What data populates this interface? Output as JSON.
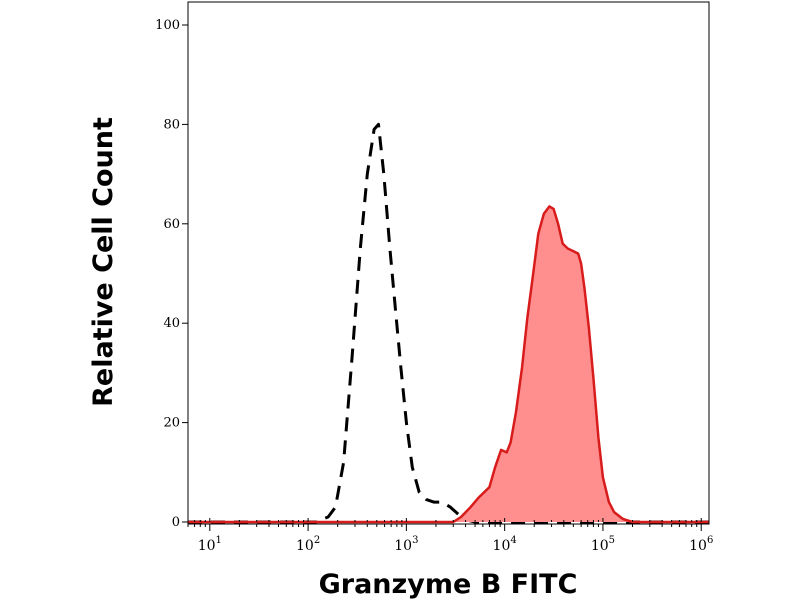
{
  "chart_data": {
    "type": "area",
    "title": "",
    "xlabel": "Granzyme B FITC",
    "ylabel": "Relative Cell Count",
    "xscale": "log",
    "xlim": [
      6,
      1200000
    ],
    "ylim": [
      0,
      100
    ],
    "grid": false,
    "legend": "none",
    "x_ticks": [
      {
        "base": "10",
        "exp": "1",
        "value": 10
      },
      {
        "base": "10",
        "exp": "2",
        "value": 100
      },
      {
        "base": "10",
        "exp": "3",
        "value": 1000
      },
      {
        "base": "10",
        "exp": "4",
        "value": 10000
      },
      {
        "base": "10",
        "exp": "5",
        "value": 100000
      },
      {
        "base": "10",
        "exp": "6",
        "value": 1000000
      }
    ],
    "y_ticks": [
      "0",
      "20",
      "40",
      "60",
      "80",
      "100"
    ],
    "series": [
      {
        "style": "dashed-outline",
        "color": "#000000",
        "points": [
          [
            6,
            0
          ],
          [
            50,
            0
          ],
          [
            120,
            0
          ],
          [
            160,
            1
          ],
          [
            190,
            3
          ],
          [
            230,
            12
          ],
          [
            280,
            33
          ],
          [
            340,
            55
          ],
          [
            400,
            70
          ],
          [
            470,
            79
          ],
          [
            520,
            80
          ],
          [
            590,
            70
          ],
          [
            680,
            55
          ],
          [
            780,
            42
          ],
          [
            880,
            31
          ],
          [
            1000,
            20
          ],
          [
            1150,
            11
          ],
          [
            1350,
            6
          ],
          [
            1600,
            4.5
          ],
          [
            1900,
            4
          ],
          [
            2300,
            4
          ],
          [
            2800,
            3
          ],
          [
            3400,
            1.5
          ],
          [
            4000,
            0.5
          ],
          [
            5000,
            0
          ],
          [
            20000,
            0
          ],
          [
            100000,
            0
          ],
          [
            1200000,
            0
          ]
        ]
      },
      {
        "style": "filled",
        "color": "#d81b1b",
        "fill": "#ff8f8f",
        "points": [
          [
            6,
            0
          ],
          [
            1000,
            0
          ],
          [
            3000,
            0
          ],
          [
            3600,
            1
          ],
          [
            4500,
            3
          ],
          [
            5500,
            5
          ],
          [
            7000,
            7
          ],
          [
            8000,
            11
          ],
          [
            9200,
            14.5
          ],
          [
            10500,
            14
          ],
          [
            11500,
            16
          ],
          [
            13000,
            22
          ],
          [
            15000,
            31
          ],
          [
            17000,
            41
          ],
          [
            19500,
            50
          ],
          [
            22000,
            58
          ],
          [
            25000,
            62
          ],
          [
            28500,
            63.5
          ],
          [
            31500,
            63
          ],
          [
            35000,
            60
          ],
          [
            39000,
            56
          ],
          [
            44000,
            55
          ],
          [
            50000,
            54.5
          ],
          [
            56000,
            54
          ],
          [
            60000,
            52
          ],
          [
            65000,
            47
          ],
          [
            72000,
            39
          ],
          [
            80000,
            29
          ],
          [
            90000,
            17
          ],
          [
            100000,
            9
          ],
          [
            115000,
            4
          ],
          [
            130000,
            2
          ],
          [
            160000,
            0.6
          ],
          [
            200000,
            0
          ],
          [
            1200000,
            0
          ]
        ]
      }
    ]
  }
}
